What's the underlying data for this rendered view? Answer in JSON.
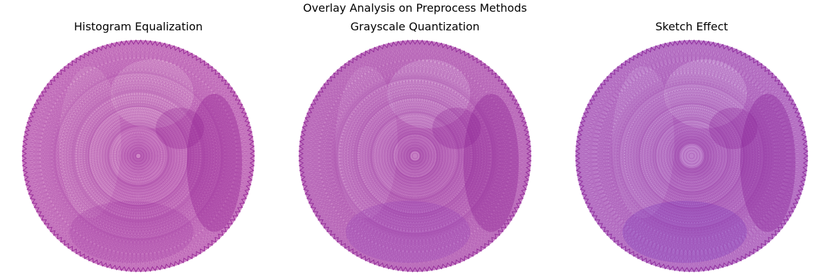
{
  "figure": {
    "title": "Overlay Analysis on Preprocess Methods"
  },
  "panels": [
    {
      "title": "Histogram Equalization",
      "palette": {
        "fill": "#cf86c6",
        "line": "#8e1a90",
        "accent": "#b04fb0",
        "highlight": "#e3b4d8"
      }
    },
    {
      "title": "Grayscale Quantization",
      "palette": {
        "fill": "#c67fc4",
        "line": "#8a1d92",
        "accent": "#9a4fc0",
        "highlight": "#dcb0dc"
      }
    },
    {
      "title": "Sketch Effect",
      "palette": {
        "fill": "#bf82cc",
        "line": "#861c95",
        "accent": "#7a3fc4",
        "highlight": "#d7b4e2"
      }
    }
  ]
}
